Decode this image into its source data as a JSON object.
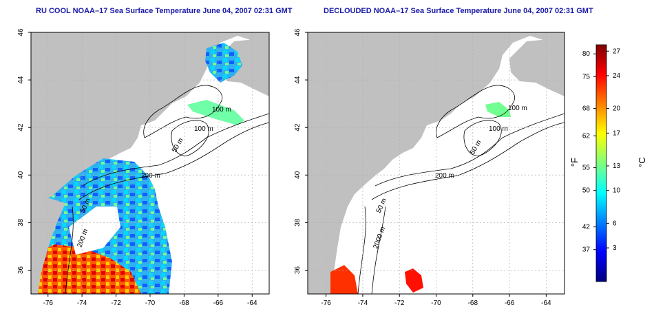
{
  "maps": [
    {
      "title": "RU COOL NOAA–17 Sea Surface Temperature June 04, 2007 02:31 GMT",
      "contours": [
        "100 m",
        "100 m",
        "50 m",
        "200 m",
        "50 m",
        "200 m"
      ]
    },
    {
      "title": "DECLOUDED NOAA–17 Sea Surface Temperature June 04, 2007 02:31 GMT",
      "contours": [
        "100 m",
        "100 m",
        "50 m",
        "200 m",
        "50 m",
        "2000 m"
      ]
    }
  ],
  "axes": {
    "lon_ticks": [
      "-76",
      "-74",
      "-72",
      "-70",
      "-68",
      "-66",
      "-64"
    ],
    "lat_ticks": [
      "46",
      "44",
      "42",
      "40",
      "38",
      "36"
    ],
    "lon_range": [
      -77,
      -63
    ],
    "lat_range": [
      35,
      46
    ],
    "grid": true
  },
  "colorbar": {
    "fahrenheit_ticks": [
      "80",
      "75",
      "68",
      "62",
      "55",
      "50",
      "42",
      "37"
    ],
    "celsius_ticks": [
      "27",
      "24",
      "20",
      "17",
      "13",
      "10",
      "6",
      "3"
    ],
    "unit_f": "°F",
    "unit_c": "°C",
    "colors": [
      "#00007f",
      "#0000ff",
      "#007fff",
      "#00ffff",
      "#7fff7f",
      "#ffff00",
      "#ff7f00",
      "#ff0000",
      "#7f0000"
    ]
  },
  "colors": {
    "land": "#c0c0c0",
    "title": "#1a1aa8"
  }
}
